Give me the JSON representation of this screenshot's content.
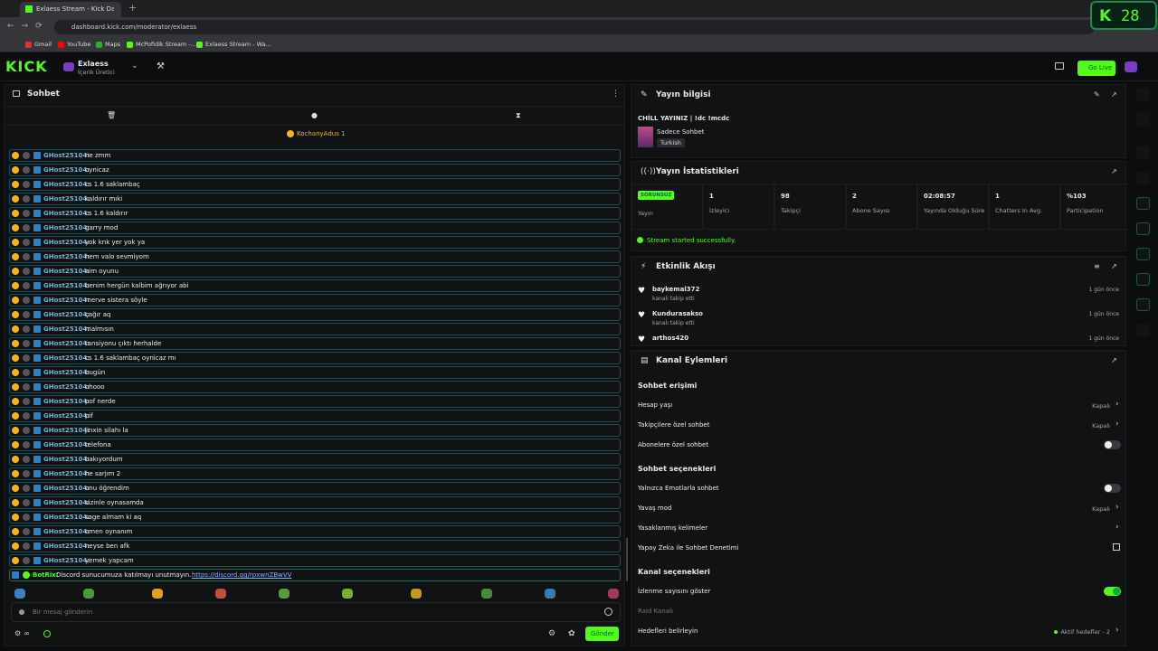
{
  "browser": {
    "tab_title": "Exlaess Stream - Kick Dashboard",
    "url": "dashboard.kick.com/moderator/exlaess",
    "bookmarks": [
      "Gmail",
      "YouTube",
      "Maps",
      "McPofidik Stream -...",
      "Exlaess Stream - Wa..."
    ]
  },
  "header": {
    "logo": "KICK",
    "channel": "Exlaess",
    "role": "İçerik Üretici",
    "go_live": "Go Live",
    "counter": 28
  },
  "chat": {
    "title": "Sohbet",
    "pinned_user": "KochanyAdus",
    "pinned_count": 1,
    "messages": [
      {
        "user": "GHost25104:",
        "text": "ne zmm"
      },
      {
        "user": "GHost25104:",
        "text": "oynicaz"
      },
      {
        "user": "GHost25104:",
        "text": "cs 1.6 saklambaç"
      },
      {
        "user": "GHost25104:",
        "text": "kaldırır mıki"
      },
      {
        "user": "GHost25104:",
        "text": "cs 1.6 kaldırır"
      },
      {
        "user": "GHost25104:",
        "text": "garry mod"
      },
      {
        "user": "GHost25104:",
        "text": "yok knk yer yok ya"
      },
      {
        "user": "GHost25104:",
        "text": "hem valo sevmiyom"
      },
      {
        "user": "GHost25104:",
        "text": "aim oyunu"
      },
      {
        "user": "GHost25104:",
        "text": "benim hergün kalbim ağrıyor abi"
      },
      {
        "user": "GHost25104:",
        "text": "merve sistera söyle"
      },
      {
        "user": "GHost25104:",
        "text": "çağır aq"
      },
      {
        "user": "GHost25104:",
        "text": "malmısın"
      },
      {
        "user": "GHost25104:",
        "text": "tansiyonu çıktı herhalde"
      },
      {
        "user": "GHost25104:",
        "text": "cs 1.6 saklambaç oynicaz mı"
      },
      {
        "user": "GHost25104:",
        "text": "bugün"
      },
      {
        "user": "GHost25104:",
        "text": "ohooo"
      },
      {
        "user": "GHost25104:",
        "text": "pof nerde"
      },
      {
        "user": "GHost25104:",
        "text": "pif"
      },
      {
        "user": "GHost25104:",
        "text": "jinxin silahı la"
      },
      {
        "user": "GHost25104:",
        "text": "telefona"
      },
      {
        "user": "GHost25104:",
        "text": "bakıyordum"
      },
      {
        "user": "GHost25104:",
        "text": "he sarjım 2"
      },
      {
        "user": "GHost25104:",
        "text": "onu öğrendim"
      },
      {
        "user": "GHost25104:",
        "text": "sizinle oynasamda"
      },
      {
        "user": "GHost25104:",
        "text": "sage almam ki aq"
      },
      {
        "user": "GHost25104:",
        "text": "omen oynanım"
      },
      {
        "user": "GHost25104:",
        "text": "neyse ben afk"
      },
      {
        "user": "GHost25104:",
        "text": "yemek yapcam"
      }
    ],
    "bot": {
      "user": "BotRix:",
      "text": "Discord sunucumuza katılmayı unutmayın.",
      "link": "https://discord.gg/rpxwnZBwVV"
    },
    "input_placeholder": "Bir mesaj gönderin",
    "send": "Gönder"
  },
  "stream_info": {
    "title": "Yayın bilgisi",
    "stream_title": "CHİLL YAYINIZ | !dc !mcdc",
    "category": "Sadece Sohbet",
    "language": "Turkish"
  },
  "stats": {
    "title": "Yayın İstatistikleri",
    "items": [
      {
        "value": "SORUNSUZ",
        "label": "Yayın"
      },
      {
        "value": 1,
        "label": "İzleyici"
      },
      {
        "value": 98,
        "label": "Takipçi"
      },
      {
        "value": 2,
        "label": "Abone Sayısı"
      },
      {
        "value": "02:08:57",
        "label": "Yayında Olduğu Süre"
      },
      {
        "value": 1,
        "label": "Chatters In Avg."
      },
      {
        "value": "%103",
        "label": "Participation"
      }
    ],
    "status": "Stream started successfully."
  },
  "activity": {
    "title": "Etkinlik Akışı",
    "events": [
      {
        "user": "baykemal372",
        "action": "kanalı takip etti",
        "time": "1 gün önce"
      },
      {
        "user": "Kundurasakso",
        "action": "kanalı takip etti",
        "time": "1 gün önce"
      },
      {
        "user": "arthos420",
        "time": "1 gün önce"
      }
    ]
  },
  "actions": {
    "title": "Kanal Eylemleri",
    "sections": [
      {
        "heading": "Sohbet erişimi",
        "rows": [
          {
            "label": "Hesap yaşı",
            "value": "Kapalı"
          },
          {
            "label": "Takipçilere özel sohbet",
            "value": "Kapalı"
          },
          {
            "label": "Abonelere özel sohbet",
            "toggle": false
          }
        ]
      },
      {
        "heading": "Sohbet seçenekleri",
        "rows": [
          {
            "label": "Yalnızca Emotlarla sohbet",
            "toggle": false
          },
          {
            "label": "Yavaş mod",
            "value": "Kapalı"
          },
          {
            "label": "Yasaklanmış kelimeler"
          },
          {
            "label": "Yapay Zeka ile Sohbet Denetimi",
            "link": "external"
          }
        ]
      },
      {
        "heading": "Kanal seçenekleri",
        "rows": [
          {
            "label": "İzlenme sayısını göster",
            "toggle": true
          },
          {
            "label": "Raid Kanalı",
            "disabled": true
          },
          {
            "label": "Hedefleri belirleyin",
            "value": "Aktif hedefler - 2"
          }
        ]
      }
    ]
  }
}
